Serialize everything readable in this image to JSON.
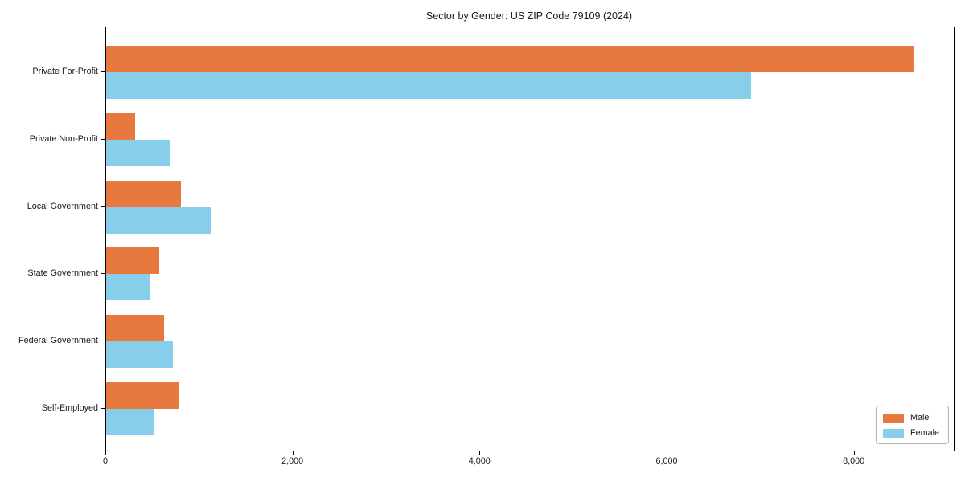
{
  "chart_data": {
    "type": "bar",
    "orientation": "horizontal",
    "title": "Sector by Gender: US ZIP Code 79109 (2024)",
    "categories": [
      "Private For-Profit",
      "Private Non-Profit",
      "Local Government",
      "State Government",
      "Federal Government",
      "Self-Employed"
    ],
    "series": [
      {
        "name": "Male",
        "color": "#e8793e",
        "values": [
          8640,
          310,
          800,
          570,
          620,
          780
        ]
      },
      {
        "name": "Female",
        "color": "#87ceeb",
        "values": [
          6890,
          680,
          1120,
          460,
          710,
          510
        ]
      }
    ],
    "xlabel": "",
    "ylabel": "",
    "xlim": [
      0,
      9060
    ],
    "x_ticks": [
      0,
      2000,
      4000,
      6000,
      8000
    ],
    "x_tick_labels": [
      "0",
      "2,000",
      "4,000",
      "6,000",
      "8,000"
    ],
    "legend": {
      "position": "lower right",
      "entries": [
        "Male",
        "Female"
      ]
    },
    "grid": false
  }
}
